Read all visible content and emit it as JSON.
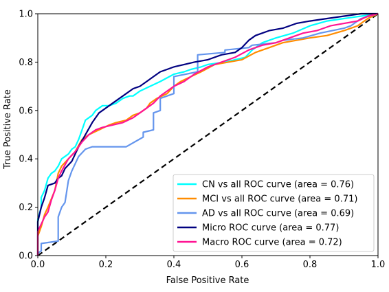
{
  "chart_data": {
    "type": "line",
    "title": "",
    "xlabel": "False Positive Rate",
    "ylabel": "True Positive Rate",
    "xlim": [
      0.0,
      1.0
    ],
    "ylim": [
      0.0,
      1.0
    ],
    "xticks": [
      "0.0",
      "0.2",
      "0.4",
      "0.6",
      "0.8",
      "1.0"
    ],
    "yticks": [
      "0.0",
      "0.2",
      "0.4",
      "0.6",
      "0.8",
      "1.0"
    ],
    "grid": false,
    "legend_position": "lower-right",
    "diagonal": {
      "style": "dashed",
      "color": "#000000",
      "x": [
        0,
        1
      ],
      "y": [
        0,
        1
      ]
    },
    "series": [
      {
        "name": "CN vs all ROC curve (area = 0.76)",
        "color": "#00ffff",
        "x": [
          0.0,
          0.0,
          0.01,
          0.01,
          0.02,
          0.03,
          0.04,
          0.05,
          0.06,
          0.07,
          0.08,
          0.09,
          0.1,
          0.11,
          0.12,
          0.13,
          0.14,
          0.16,
          0.17,
          0.19,
          0.21,
          0.23,
          0.25,
          0.27,
          0.28,
          0.3,
          0.33,
          0.36,
          0.4,
          0.43,
          0.45,
          0.48,
          0.5,
          0.55,
          0.58,
          0.61,
          0.63,
          0.66,
          0.7,
          0.75,
          0.8,
          0.85,
          0.9,
          0.95,
          1.0
        ],
        "y": [
          0.0,
          0.15,
          0.2,
          0.24,
          0.27,
          0.32,
          0.34,
          0.35,
          0.37,
          0.4,
          0.41,
          0.42,
          0.44,
          0.45,
          0.48,
          0.52,
          0.56,
          0.58,
          0.6,
          0.62,
          0.62,
          0.63,
          0.65,
          0.66,
          0.66,
          0.68,
          0.7,
          0.72,
          0.75,
          0.76,
          0.77,
          0.78,
          0.79,
          0.8,
          0.81,
          0.82,
          0.85,
          0.88,
          0.9,
          0.92,
          0.95,
          0.97,
          0.98,
          0.99,
          1.0
        ]
      },
      {
        "name": "MCI vs all ROC curve (area = 0.71)",
        "color": "#ff8c00",
        "x": [
          0.0,
          0.0,
          0.01,
          0.02,
          0.03,
          0.05,
          0.06,
          0.07,
          0.09,
          0.11,
          0.13,
          0.15,
          0.18,
          0.21,
          0.23,
          0.26,
          0.28,
          0.3,
          0.32,
          0.33,
          0.35,
          0.38,
          0.4,
          0.42,
          0.45,
          0.48,
          0.52,
          0.56,
          0.6,
          0.64,
          0.68,
          0.72,
          0.76,
          0.8,
          0.85,
          0.9,
          0.94,
          0.97,
          1.0
        ],
        "y": [
          0.0,
          0.08,
          0.12,
          0.17,
          0.2,
          0.27,
          0.34,
          0.37,
          0.4,
          0.43,
          0.48,
          0.5,
          0.52,
          0.54,
          0.55,
          0.56,
          0.58,
          0.59,
          0.61,
          0.63,
          0.65,
          0.67,
          0.7,
          0.72,
          0.74,
          0.76,
          0.79,
          0.8,
          0.81,
          0.84,
          0.86,
          0.88,
          0.89,
          0.9,
          0.91,
          0.93,
          0.95,
          0.98,
          1.0
        ]
      },
      {
        "name": "AD vs all ROC curve (area = 0.69)",
        "color": "#6495ed",
        "x": [
          0.0,
          0.0,
          0.01,
          0.01,
          0.06,
          0.06,
          0.07,
          0.08,
          0.09,
          0.1,
          0.12,
          0.14,
          0.16,
          0.2,
          0.26,
          0.31,
          0.31,
          0.34,
          0.34,
          0.36,
          0.36,
          0.4,
          0.4,
          0.47,
          0.47,
          0.55,
          0.55,
          0.62,
          0.63,
          0.7,
          0.72,
          0.78,
          0.83,
          0.9,
          0.92,
          0.95,
          1.0
        ],
        "y": [
          0.0,
          0.01,
          0.02,
          0.05,
          0.06,
          0.16,
          0.2,
          0.22,
          0.31,
          0.35,
          0.41,
          0.44,
          0.45,
          0.45,
          0.45,
          0.49,
          0.51,
          0.52,
          0.59,
          0.6,
          0.65,
          0.67,
          0.74,
          0.76,
          0.83,
          0.84,
          0.85,
          0.86,
          0.87,
          0.88,
          0.89,
          0.9,
          0.92,
          0.94,
          0.95,
          0.98,
          1.0
        ]
      },
      {
        "name": "Micro ROC curve (area = 0.77)",
        "color": "#000080",
        "x": [
          0.0,
          0.0,
          0.01,
          0.02,
          0.03,
          0.05,
          0.06,
          0.07,
          0.08,
          0.1,
          0.12,
          0.14,
          0.16,
          0.18,
          0.2,
          0.22,
          0.24,
          0.26,
          0.28,
          0.3,
          0.32,
          0.34,
          0.36,
          0.38,
          0.4,
          0.43,
          0.46,
          0.5,
          0.54,
          0.58,
          0.6,
          0.62,
          0.64,
          0.68,
          0.72,
          0.76,
          0.8,
          0.85,
          0.9,
          0.95,
          1.0
        ],
        "y": [
          0.0,
          0.14,
          0.2,
          0.24,
          0.29,
          0.3,
          0.32,
          0.33,
          0.36,
          0.39,
          0.45,
          0.5,
          0.55,
          0.59,
          0.61,
          0.63,
          0.65,
          0.67,
          0.69,
          0.7,
          0.72,
          0.74,
          0.76,
          0.77,
          0.78,
          0.79,
          0.8,
          0.81,
          0.83,
          0.84,
          0.86,
          0.89,
          0.91,
          0.93,
          0.94,
          0.96,
          0.97,
          0.98,
          0.99,
          1.0,
          1.0
        ]
      },
      {
        "name": "Macro ROC curve (area = 0.72)",
        "color": "#ff1493",
        "x": [
          0.0,
          0.0,
          0.01,
          0.02,
          0.03,
          0.04,
          0.05,
          0.06,
          0.07,
          0.09,
          0.11,
          0.13,
          0.15,
          0.17,
          0.19,
          0.22,
          0.25,
          0.28,
          0.3,
          0.32,
          0.34,
          0.36,
          0.38,
          0.4,
          0.43,
          0.46,
          0.5,
          0.54,
          0.58,
          0.62,
          0.66,
          0.7,
          0.74,
          0.78,
          0.82,
          0.86,
          0.9,
          0.94,
          0.97,
          1.0
        ],
        "y": [
          0.0,
          0.1,
          0.13,
          0.16,
          0.18,
          0.23,
          0.27,
          0.32,
          0.35,
          0.4,
          0.43,
          0.47,
          0.5,
          0.52,
          0.53,
          0.54,
          0.55,
          0.57,
          0.59,
          0.61,
          0.63,
          0.66,
          0.68,
          0.7,
          0.72,
          0.75,
          0.78,
          0.8,
          0.82,
          0.85,
          0.87,
          0.88,
          0.9,
          0.92,
          0.93,
          0.95,
          0.96,
          0.97,
          0.99,
          1.0
        ]
      }
    ]
  }
}
